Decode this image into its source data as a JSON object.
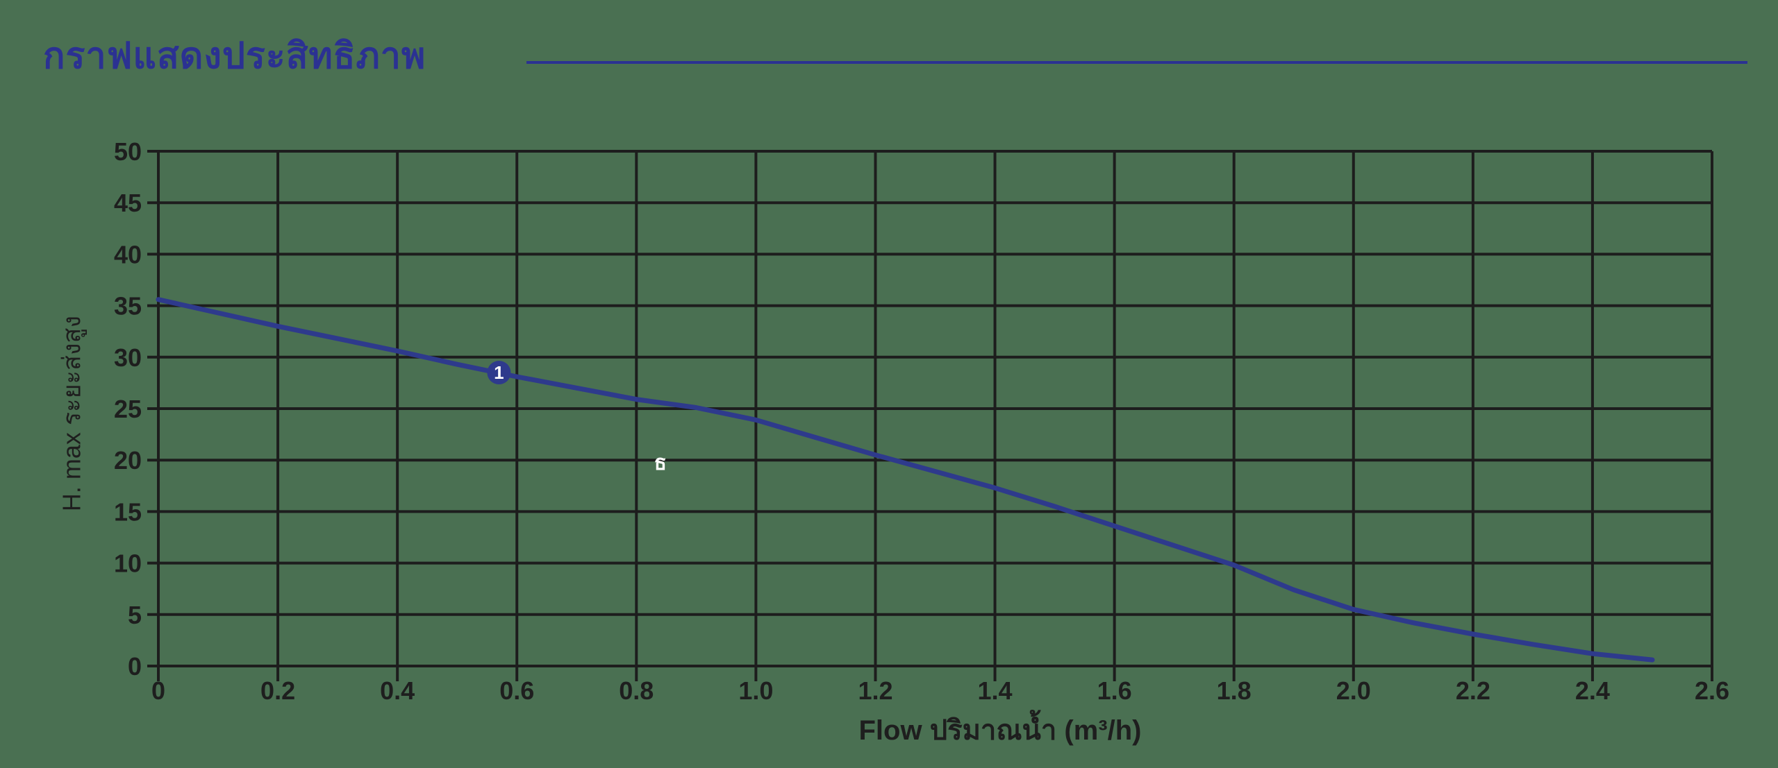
{
  "title": "กราฟแสดงประสิทธิภาพ",
  "colors": {
    "background": "#4a7052",
    "title_blue": "#2b3192",
    "curve_blue": "#2e3a8c",
    "grid_dark": "#1d1d1d",
    "tick_text": "#1e1e1e",
    "annotation_white": "#ffffff"
  },
  "chart_data": {
    "type": "line",
    "title": "กราฟแสดงประสิทธิภาพ",
    "xlabel": "Flow ปริมาณน้ำ (m³/h)",
    "ylabel": "H. max ระยะส่งสูง",
    "xlim": [
      0,
      2.6
    ],
    "ylim": [
      0,
      50
    ],
    "grid": true,
    "x_ticks": [
      "0",
      "0.2",
      "0.4",
      "0.6",
      "0.8",
      "1.0",
      "1.2",
      "1.4",
      "1.6",
      "1.8",
      "2.0",
      "2.2",
      "2.4",
      "2.6"
    ],
    "y_ticks": [
      "0",
      "5",
      "10",
      "15",
      "20",
      "25",
      "30",
      "35",
      "40",
      "45",
      "50"
    ],
    "series": [
      {
        "name": "pump-head-curve",
        "x": [
          0,
          0.1,
          0.2,
          0.3,
          0.4,
          0.5,
          0.6,
          0.7,
          0.8,
          0.9,
          1.0,
          1.1,
          1.2,
          1.3,
          1.4,
          1.5,
          1.6,
          1.7,
          1.8,
          1.9,
          2.0,
          2.1,
          2.2,
          2.3,
          2.4,
          2.5
        ],
        "y": [
          35.6,
          34.3,
          33.0,
          31.8,
          30.6,
          29.3,
          28.1,
          27.0,
          25.9,
          25.1,
          23.9,
          22.2,
          20.5,
          18.9,
          17.3,
          15.5,
          13.6,
          11.7,
          9.8,
          7.4,
          5.5,
          4.2,
          3.1,
          2.1,
          1.2,
          0.6
        ]
      }
    ],
    "point_marker": {
      "x": 0.57,
      "y": 28.5,
      "label": "1"
    },
    "annotation": {
      "x": 0.84,
      "y": 19.8,
      "text": "ธ"
    }
  }
}
